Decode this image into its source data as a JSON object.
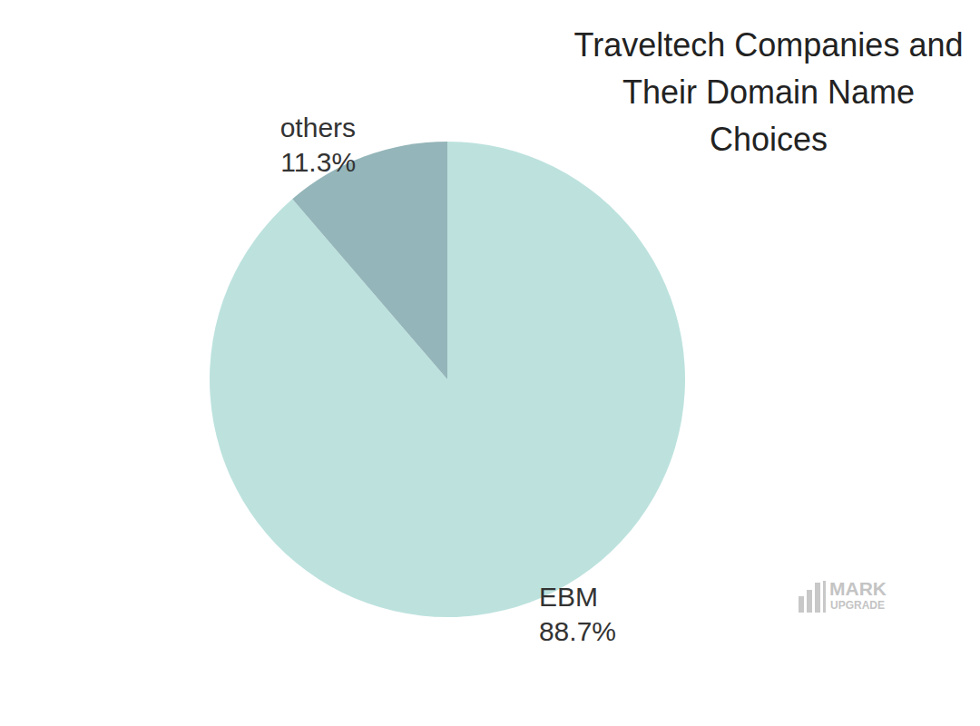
{
  "chart_data": {
    "type": "pie",
    "title": "Traveltech Companies and\nTheir Domain Name\nChoices",
    "categories": [
      "EBM",
      "others"
    ],
    "values": [
      88.7,
      11.3
    ],
    "value_labels": [
      "88.7%",
      "11.3%"
    ],
    "colors": [
      "#bde2de",
      "#94b5b9"
    ],
    "data_labels": true,
    "legend": false,
    "annotations": [
      "MARK",
      "UPGRADE"
    ]
  }
}
